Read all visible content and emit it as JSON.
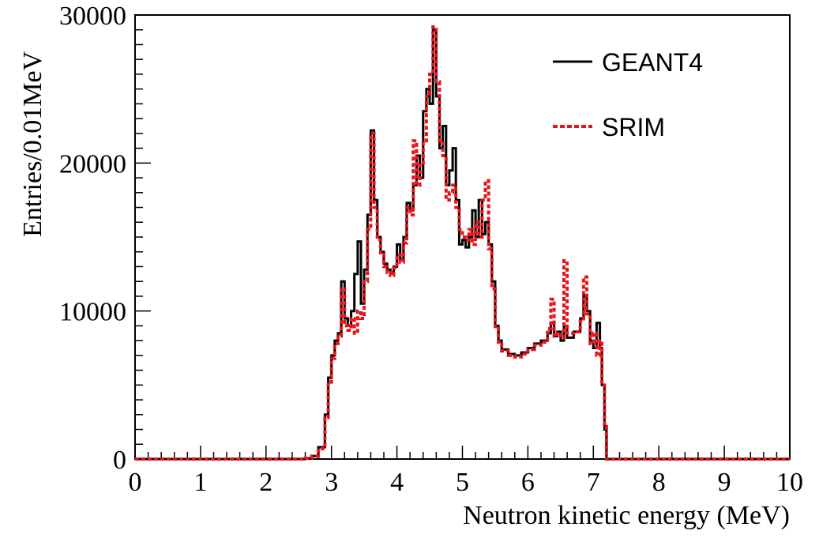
{
  "chart_data": {
    "type": "line",
    "xlabel": "Neutron kinetic energy (MeV)",
    "ylabel": "Entries/0.01MeV",
    "xlim": [
      0,
      10
    ],
    "ylim": [
      0,
      30000
    ],
    "x_ticks": [
      "0",
      "1",
      "2",
      "3",
      "4",
      "5",
      "6",
      "7",
      "8",
      "9",
      "10"
    ],
    "y_ticks": [
      "0",
      "10000",
      "20000",
      "30000"
    ],
    "grid": false,
    "legend_position": "top-right",
    "series": [
      {
        "name": "GEANT4",
        "color": "#000000",
        "style": "solid",
        "points": [
          [
            0,
            0
          ],
          [
            2.5,
            0
          ],
          [
            2.6,
            50
          ],
          [
            2.7,
            200
          ],
          [
            2.8,
            800
          ],
          [
            2.9,
            3000
          ],
          [
            2.95,
            5500
          ],
          [
            3.0,
            7000
          ],
          [
            3.05,
            8000
          ],
          [
            3.1,
            8500
          ],
          [
            3.15,
            12000
          ],
          [
            3.2,
            9500
          ],
          [
            3.25,
            9000
          ],
          [
            3.3,
            10000
          ],
          [
            3.35,
            12500
          ],
          [
            3.4,
            14700
          ],
          [
            3.45,
            10500
          ],
          [
            3.5,
            12800
          ],
          [
            3.55,
            16500
          ],
          [
            3.6,
            22200
          ],
          [
            3.65,
            17500
          ],
          [
            3.7,
            15000
          ],
          [
            3.75,
            14000
          ],
          [
            3.8,
            13200
          ],
          [
            3.85,
            12800
          ],
          [
            3.9,
            12600
          ],
          [
            3.95,
            13000
          ],
          [
            4.0,
            14500
          ],
          [
            4.05,
            13500
          ],
          [
            4.1,
            15000
          ],
          [
            4.15,
            17300
          ],
          [
            4.2,
            16800
          ],
          [
            4.25,
            18500
          ],
          [
            4.3,
            20500
          ],
          [
            4.35,
            19000
          ],
          [
            4.4,
            23500
          ],
          [
            4.45,
            25000
          ],
          [
            4.5,
            24000
          ],
          [
            4.55,
            29000
          ],
          [
            4.6,
            24500
          ],
          [
            4.65,
            21000
          ],
          [
            4.7,
            22500
          ],
          [
            4.75,
            18500
          ],
          [
            4.8,
            19500
          ],
          [
            4.85,
            21000
          ],
          [
            4.9,
            17500
          ],
          [
            4.95,
            14500
          ],
          [
            5.0,
            14800
          ],
          [
            5.05,
            14300
          ],
          [
            5.1,
            15000
          ],
          [
            5.15,
            16800
          ],
          [
            5.2,
            15000
          ],
          [
            5.25,
            17500
          ],
          [
            5.3,
            15200
          ],
          [
            5.35,
            16000
          ],
          [
            5.4,
            14500
          ],
          [
            5.45,
            12000
          ],
          [
            5.5,
            9000
          ],
          [
            5.55,
            8000
          ],
          [
            5.6,
            7400
          ],
          [
            5.7,
            7100
          ],
          [
            5.8,
            7000
          ],
          [
            5.9,
            7200
          ],
          [
            6.0,
            7500
          ],
          [
            6.1,
            7800
          ],
          [
            6.2,
            8000
          ],
          [
            6.3,
            8500
          ],
          [
            6.35,
            9200
          ],
          [
            6.4,
            8300
          ],
          [
            6.45,
            8600
          ],
          [
            6.5,
            8000
          ],
          [
            6.55,
            9000
          ],
          [
            6.6,
            8200
          ],
          [
            6.7,
            8600
          ],
          [
            6.8,
            9500
          ],
          [
            6.85,
            11000
          ],
          [
            6.9,
            10000
          ],
          [
            6.95,
            8000
          ],
          [
            7.0,
            7500
          ],
          [
            7.05,
            9200
          ],
          [
            7.1,
            7500
          ],
          [
            7.13,
            5000
          ],
          [
            7.17,
            2000
          ],
          [
            7.2,
            0
          ],
          [
            10,
            0
          ]
        ]
      },
      {
        "name": "SRIM",
        "color": "#e8141b",
        "style": "dashed",
        "points": [
          [
            0,
            0
          ],
          [
            2.5,
            0
          ],
          [
            2.6,
            50
          ],
          [
            2.7,
            200
          ],
          [
            2.8,
            700
          ],
          [
            2.9,
            2800
          ],
          [
            2.95,
            5200
          ],
          [
            3.0,
            6800
          ],
          [
            3.05,
            7800
          ],
          [
            3.1,
            8300
          ],
          [
            3.15,
            11500
          ],
          [
            3.2,
            9000
          ],
          [
            3.25,
            8700
          ],
          [
            3.3,
            9500
          ],
          [
            3.35,
            8500
          ],
          [
            3.4,
            10000
          ],
          [
            3.45,
            9500
          ],
          [
            3.5,
            12000
          ],
          [
            3.55,
            15500
          ],
          [
            3.6,
            22000
          ],
          [
            3.65,
            17000
          ],
          [
            3.7,
            14800
          ],
          [
            3.75,
            13800
          ],
          [
            3.8,
            13000
          ],
          [
            3.85,
            12600
          ],
          [
            3.9,
            12400
          ],
          [
            3.95,
            12900
          ],
          [
            4.0,
            13800
          ],
          [
            4.05,
            13300
          ],
          [
            4.1,
            14600
          ],
          [
            4.15,
            17000
          ],
          [
            4.2,
            16500
          ],
          [
            4.25,
            21500
          ],
          [
            4.3,
            18500
          ],
          [
            4.35,
            20000
          ],
          [
            4.4,
            21500
          ],
          [
            4.45,
            24500
          ],
          [
            4.5,
            26000
          ],
          [
            4.55,
            29200
          ],
          [
            4.6,
            25500
          ],
          [
            4.65,
            21500
          ],
          [
            4.7,
            20500
          ],
          [
            4.75,
            17500
          ],
          [
            4.8,
            18000
          ],
          [
            4.85,
            18500
          ],
          [
            4.9,
            17000
          ],
          [
            4.95,
            15500
          ],
          [
            5.0,
            15000
          ],
          [
            5.05,
            14800
          ],
          [
            5.1,
            15500
          ],
          [
            5.15,
            14500
          ],
          [
            5.2,
            16000
          ],
          [
            5.25,
            15000
          ],
          [
            5.3,
            17500
          ],
          [
            5.35,
            18800
          ],
          [
            5.4,
            14200
          ],
          [
            5.45,
            11500
          ],
          [
            5.5,
            8800
          ],
          [
            5.55,
            7900
          ],
          [
            5.6,
            7300
          ],
          [
            5.7,
            7000
          ],
          [
            5.8,
            6900
          ],
          [
            5.9,
            7100
          ],
          [
            6.0,
            7400
          ],
          [
            6.1,
            7700
          ],
          [
            6.2,
            7900
          ],
          [
            6.3,
            8800
          ],
          [
            6.35,
            10800
          ],
          [
            6.4,
            8300
          ],
          [
            6.45,
            8500
          ],
          [
            6.5,
            8200
          ],
          [
            6.55,
            13400
          ],
          [
            6.6,
            8500
          ],
          [
            6.7,
            8600
          ],
          [
            6.8,
            9300
          ],
          [
            6.85,
            12300
          ],
          [
            6.9,
            9800
          ],
          [
            6.95,
            7800
          ],
          [
            7.0,
            8500
          ],
          [
            7.05,
            7000
          ],
          [
            7.1,
            8000
          ],
          [
            7.13,
            5200
          ],
          [
            7.17,
            2200
          ],
          [
            7.2,
            0
          ],
          [
            10,
            0
          ]
        ]
      }
    ]
  }
}
